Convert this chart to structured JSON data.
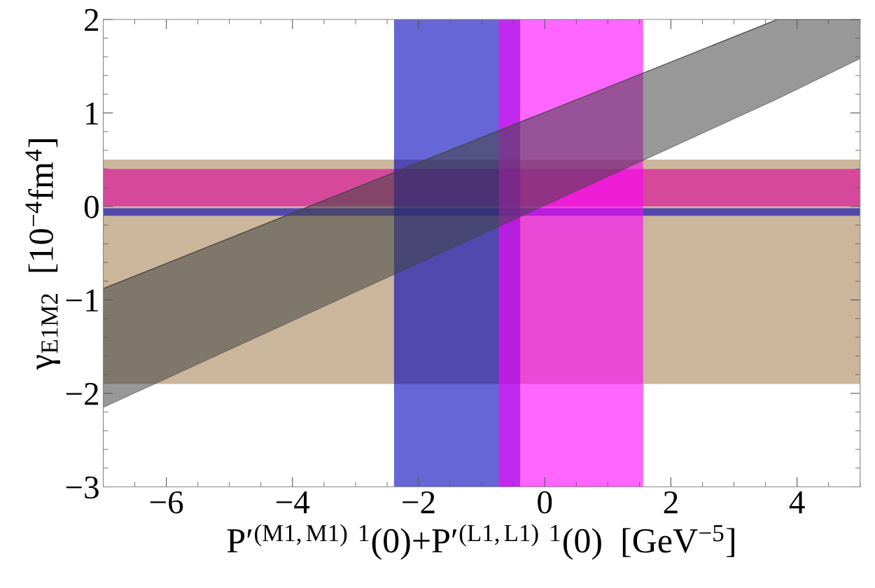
{
  "chart_data": {
    "type": "line",
    "xlabel": "P′$^{(M1,M1) 1}$(0)+P′$^{(L1,L1) 1}$(0)  [GeV$^{−5}$]",
    "ylabel": "γ$_{E1M2}$  [10$^{−4}$fm$^{4}$]",
    "xlim": [
      -7,
      5
    ],
    "ylim": [
      -3,
      2
    ],
    "xticks": [
      -6,
      -4,
      -2,
      0,
      2,
      4
    ],
    "yticks": [
      -3,
      -2,
      -1,
      0,
      1,
      2
    ],
    "grid": false,
    "legend": false,
    "series": [
      {
        "color": "#444444",
        "x": [
          -7,
          3.69,
          5
        ],
        "values": [
          -0.88,
          2,
          2
        ],
        "lower": [
          -2.15,
          1.15,
          1.58
        ],
        "upper": [
          -0.88,
          2,
          2
        ]
      }
    ],
    "bands": [
      {
        "axis": "y",
        "from": -1.9,
        "to": 0.5,
        "color": "#a88558"
      },
      {
        "axis": "y",
        "from": 0.0,
        "to": 0.4,
        "color": "#dd0099"
      },
      {
        "axis": "y",
        "from": -0.1,
        "to": -0.02,
        "color": "#0000bb"
      },
      {
        "axis": "x",
        "from": -2.39,
        "to": -0.39,
        "color": "#0000bb"
      },
      {
        "axis": "x",
        "from": -0.73,
        "to": 1.56,
        "color": "#ff00ff"
      }
    ]
  }
}
